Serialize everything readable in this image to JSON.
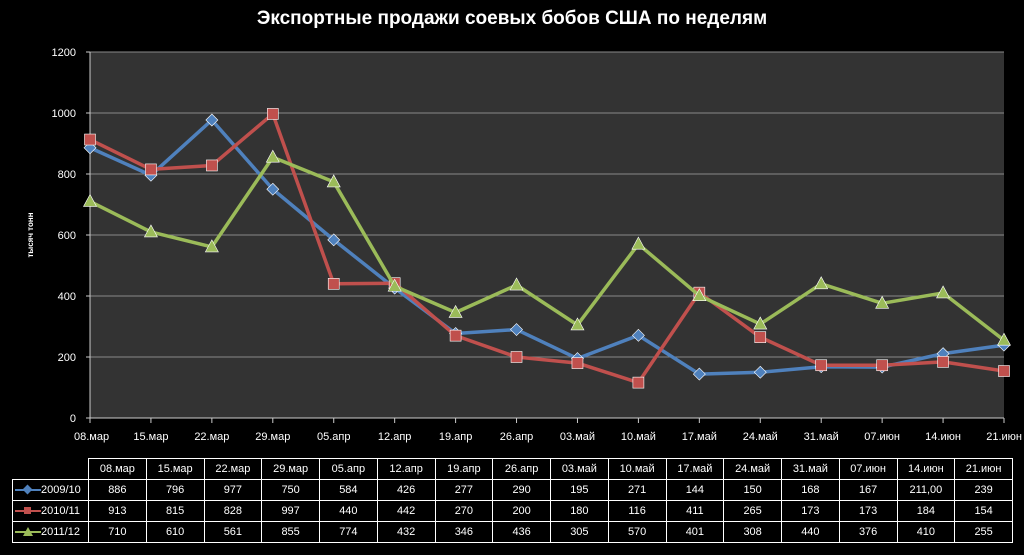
{
  "chart_data": {
    "type": "line",
    "title": "Экспортные продажи соевых бобов США по неделям",
    "ylabel": "тысяч тонн",
    "xlabel": "",
    "ylim": [
      0,
      1200
    ],
    "yticks": [
      "0",
      "200",
      "400",
      "600",
      "800",
      "1000",
      "1200"
    ],
    "grid": true,
    "categories": [
      "08.мар",
      "15.мар",
      "22.мар",
      "29.мар",
      "05.апр",
      "12.апр",
      "19.апр",
      "26.апр",
      "03.май",
      "10.май",
      "17.май",
      "24.май",
      "31.май",
      "07.июн",
      "14.июн",
      "21.июн"
    ],
    "series": [
      {
        "name": "2009/10",
        "color": "#4f81bd",
        "marker": "diamond",
        "values": [
          886,
          796,
          977,
          750,
          584,
          426,
          277,
          290,
          195,
          271,
          144,
          150,
          168,
          167,
          211,
          239
        ],
        "labels": [
          "886",
          "796",
          "977",
          "750",
          "584",
          "426",
          "277",
          "290",
          "195",
          "271",
          "144",
          "150",
          "168",
          "167",
          "211,00",
          "239"
        ]
      },
      {
        "name": "2010/11",
        "color": "#c0504d",
        "marker": "square",
        "values": [
          913,
          815,
          828,
          997,
          440,
          442,
          270,
          200,
          180,
          116,
          411,
          265,
          173,
          173,
          184,
          154
        ],
        "labels": [
          "913",
          "815",
          "828",
          "997",
          "440",
          "442",
          "270",
          "200",
          "180",
          "116",
          "411",
          "265",
          "173",
          "173",
          "184",
          "154"
        ]
      },
      {
        "name": "2011/12",
        "color": "#9bbb59",
        "marker": "triangle",
        "values": [
          710,
          610,
          561,
          855,
          774,
          432,
          346,
          436,
          305,
          570,
          401,
          308,
          440,
          376,
          410,
          255
        ],
        "labels": [
          "710",
          "610",
          "561",
          "855",
          "774",
          "432",
          "346",
          "436",
          "305",
          "570",
          "401",
          "308",
          "440",
          "376",
          "410",
          "255"
        ]
      }
    ],
    "data_table": true
  },
  "colors": {
    "background": "#000000",
    "plot_area": "#333333",
    "gridline": "#8a8a8a",
    "text": "#ffffff"
  }
}
